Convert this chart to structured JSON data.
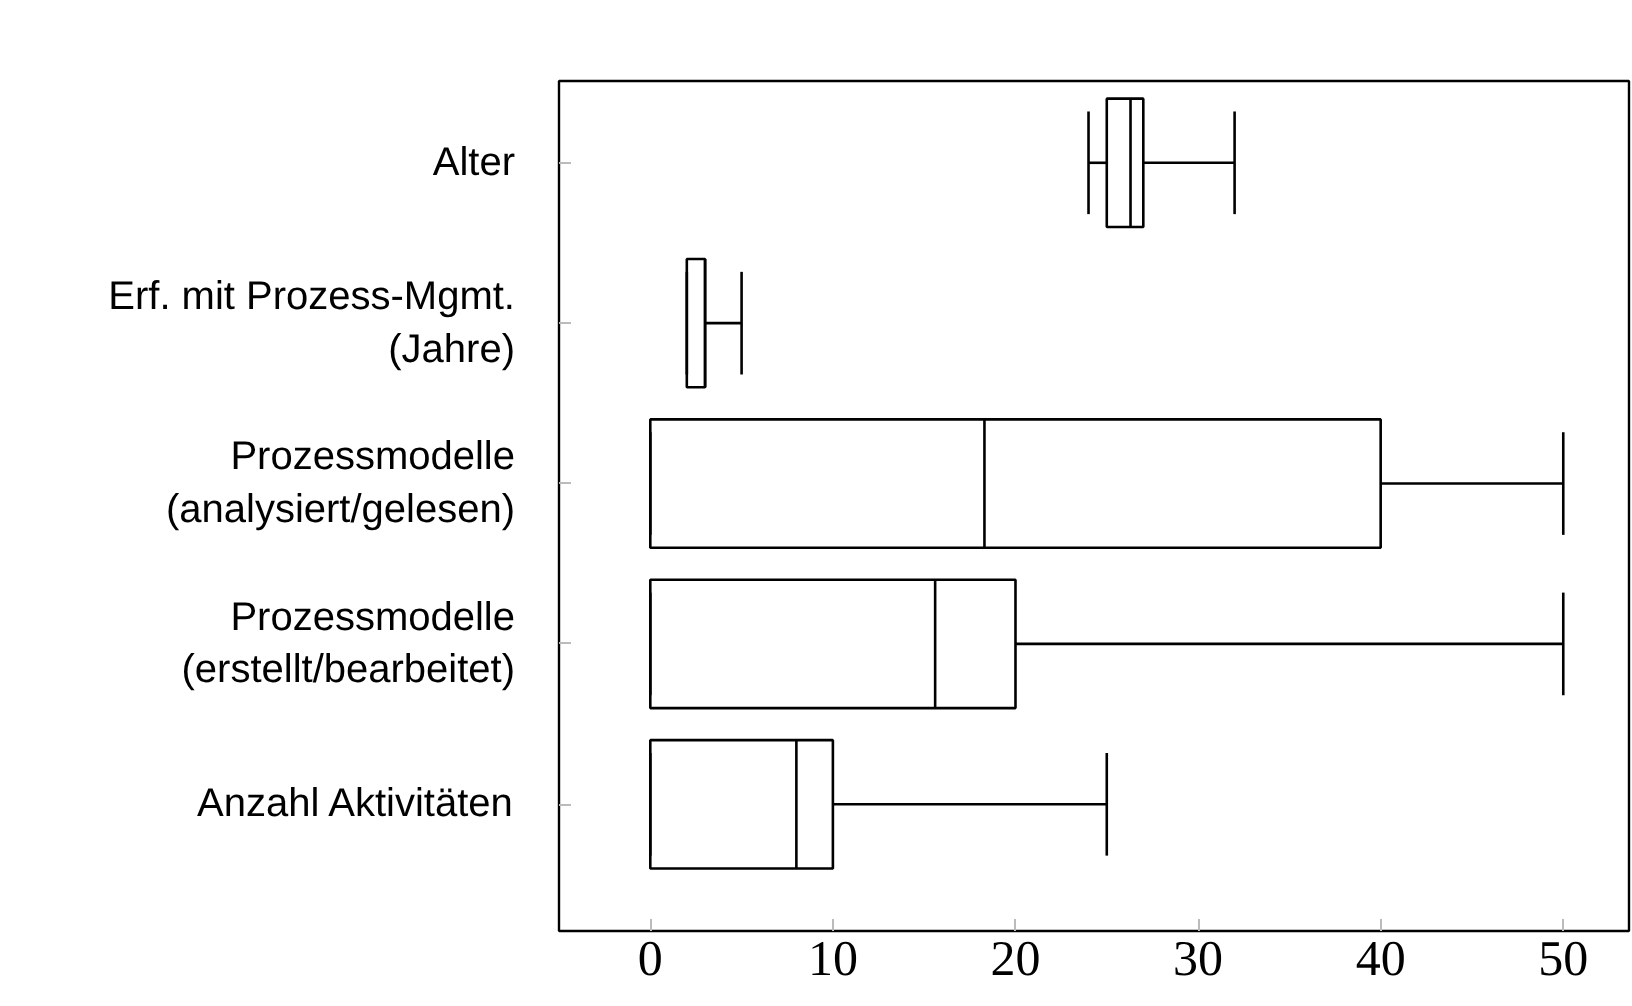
{
  "chart_data": {
    "type": "box",
    "orientation": "horizontal",
    "categories": [
      "Alter",
      "Erf. mit Prozess-Mgmt.\n(Jahre)",
      "Prozessmodelle\n(analysiert/gelesen)",
      "Prozessmodelle\n(erstellt/bearbeitet)",
      "Anzahl Aktivitäten"
    ],
    "boxes": [
      {
        "low": 24,
        "q1": 25,
        "median": 26.3,
        "q3": 27,
        "high": 32
      },
      {
        "low": 2,
        "q1": 2,
        "median": 3,
        "q3": 3,
        "high": 5
      },
      {
        "low": 0,
        "q1": 0,
        "median": 18.3,
        "q3": 40,
        "high": 50
      },
      {
        "low": 0,
        "q1": 0,
        "median": 15.6,
        "q3": 20,
        "high": 50
      },
      {
        "low": 0,
        "q1": 0,
        "median": 8,
        "q3": 10,
        "high": 25
      }
    ],
    "color": "#000000",
    "xlim": [
      -5,
      53.6
    ],
    "xticks": [
      0,
      10,
      20,
      30,
      40,
      50
    ],
    "grid": false
  }
}
